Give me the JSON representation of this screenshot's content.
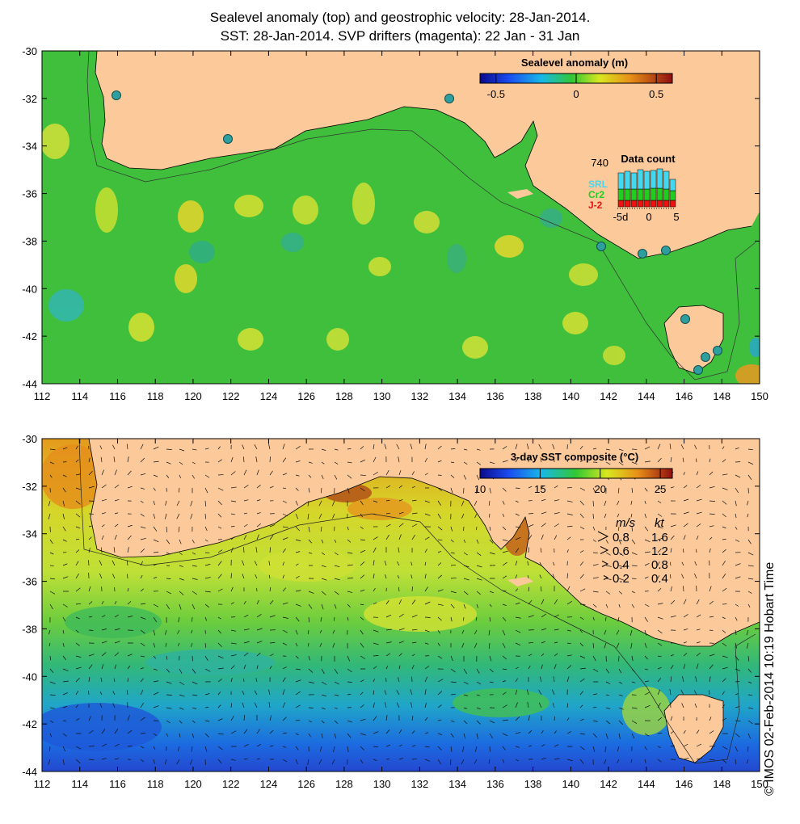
{
  "titles": {
    "line1": "Sealevel anomaly (top) and geostrophic velocity: 28-Jan-2014.",
    "line2": "SST: 28-Jan-2014. SVP drifters (magenta): 22 Jan - 31 Jan"
  },
  "map_axes": {
    "x_ticks": [
      "112",
      "114",
      "116",
      "118",
      "120",
      "122",
      "124",
      "126",
      "128",
      "130",
      "132",
      "134",
      "136",
      "138",
      "140",
      "142",
      "144",
      "146",
      "148",
      "150"
    ],
    "y_ticks": [
      "-30",
      "-32",
      "-34",
      "-36",
      "-38",
      "-40",
      "-42",
      "-44"
    ],
    "lon_range": [
      112,
      150
    ],
    "lat_range": [
      -44,
      -30
    ]
  },
  "top_panel": {
    "colorbar_title": "Sealevel anomaly (m)",
    "colorbar_ticks": [
      "-0.5",
      "0",
      "0.5"
    ],
    "colorbar_range": [
      -0.6,
      0.6
    ],
    "data_count": {
      "title": "Data count",
      "max_label": "740",
      "legend": [
        {
          "name": "SRL",
          "color": "#44d8f0"
        },
        {
          "name": "Cr2",
          "color": "#22cc22"
        },
        {
          "name": "J-2",
          "color": "#ee1111"
        }
      ],
      "x_ticks": [
        "-5d",
        "0",
        "5"
      ]
    }
  },
  "bottom_panel": {
    "colorbar_title": "3-day SST composite (°C)",
    "colorbar_ticks": [
      "10",
      "15",
      "20",
      "25"
    ],
    "colorbar_range": [
      10,
      26
    ],
    "velocity_legend": {
      "header_ms": "m/s",
      "header_kt": "kt",
      "rows": [
        {
          "ms": "0.8",
          "kt": "1.6"
        },
        {
          "ms": "0.6",
          "kt": "1.2"
        },
        {
          "ms": "0.4",
          "kt": "0.8"
        },
        {
          "ms": "0.2",
          "kt": "0.4"
        }
      ]
    }
  },
  "timestamp": "© IMOS 02-Feb-2014 10:19 Hobart Time",
  "colors": {
    "land": "#fcc99a",
    "ocean_sla": "#3fbf3c",
    "sst_warm": "#e8a21e",
    "sst_cool": "#1f8cd8"
  }
}
